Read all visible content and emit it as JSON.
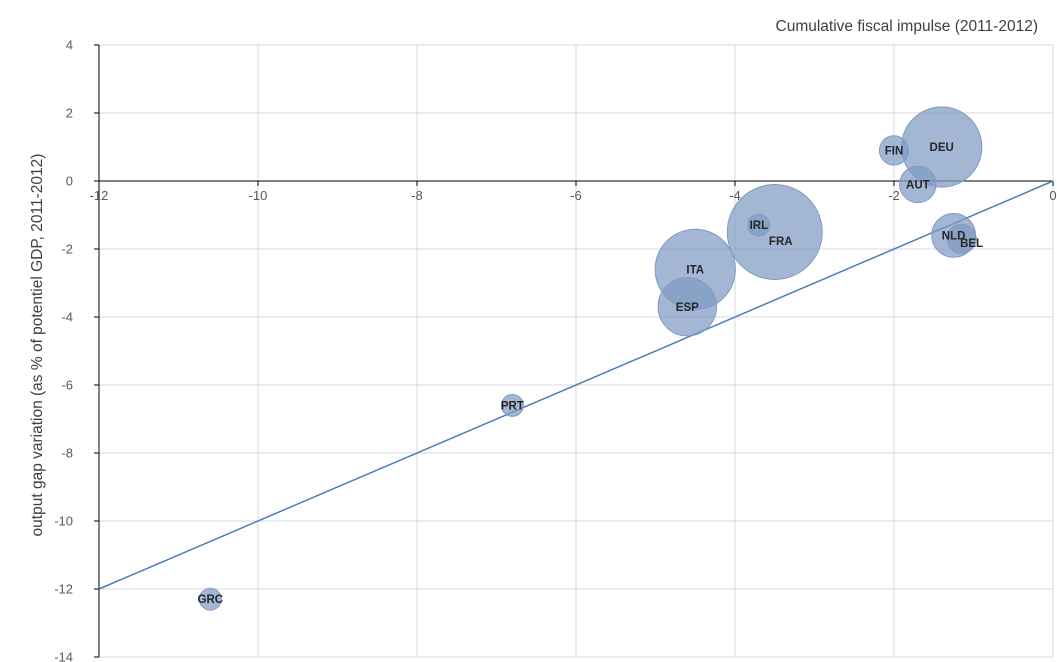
{
  "chart_data": {
    "type": "scatter",
    "variant": "bubble",
    "xlabel": "Cumulative fiscal impulse (2011-2012)",
    "ylabel": "output gap variation (as % of potentiel GDP, 2011-2012)",
    "xlim": [
      -12,
      0
    ],
    "ylim": [
      -14,
      4
    ],
    "xticks": [
      -12,
      -10,
      -8,
      -6,
      -4,
      -2,
      0
    ],
    "yticks": [
      4,
      2,
      0,
      -2,
      -4,
      -6,
      -8,
      -10,
      -12,
      -14
    ],
    "grid": true,
    "colors": {
      "bubble": "#7f9bc4",
      "line": "#4a7ebb",
      "grid": "#d9d9d9",
      "axis": "#000000"
    },
    "points": [
      {
        "label": "DEU",
        "x": -1.4,
        "y": 1.0,
        "size": 5.5
      },
      {
        "label": "FIN",
        "x": -2.0,
        "y": 0.9,
        "size": 2.0
      },
      {
        "label": "AUT",
        "x": -1.7,
        "y": -0.1,
        "size": 2.5
      },
      {
        "label": "IRL",
        "x": -3.7,
        "y": -1.3,
        "size": 1.5
      },
      {
        "label": "FRA",
        "x": -3.5,
        "y": -1.5,
        "size": 6.5
      },
      {
        "label": "NLD",
        "x": -1.25,
        "y": -1.6,
        "size": 3.0
      },
      {
        "label": "BEL",
        "x": -1.15,
        "y": -1.7,
        "size": 2.0
      },
      {
        "label": "ITA",
        "x": -4.5,
        "y": -2.6,
        "size": 5.5
      },
      {
        "label": "ESP",
        "x": -4.6,
        "y": -3.7,
        "size": 4.0
      },
      {
        "label": "PRT",
        "x": -6.8,
        "y": -6.6,
        "size": 1.5
      },
      {
        "label": "GRC",
        "x": -10.6,
        "y": -12.3,
        "size": 1.5
      }
    ],
    "reference_line": {
      "x": [
        -12,
        0
      ],
      "y": [
        -12,
        0
      ]
    }
  }
}
